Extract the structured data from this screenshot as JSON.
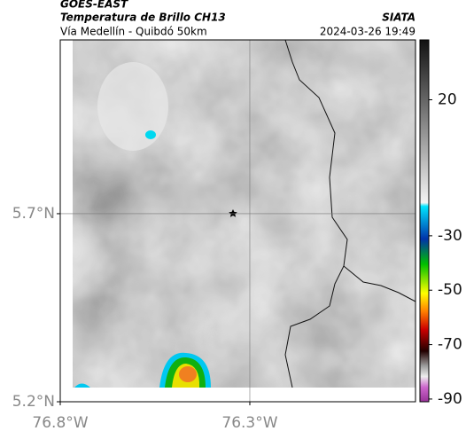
{
  "header": {
    "title": "GOES-EAST",
    "subtitle": "Temperatura de Brillo CH13",
    "route": "Vía Medellín - Quibdó 50km",
    "source": "SIATA",
    "datetime": "2024-03-26 19:49"
  },
  "map": {
    "xlim": [
      -76.8,
      -75.863
    ],
    "ylim": [
      5.2,
      6.162
    ],
    "xticks": [
      {
        "value": -76.8,
        "label": "76.8°W"
      },
      {
        "value": -76.3,
        "label": "76.3°W"
      }
    ],
    "yticks": [
      {
        "value": 5.2,
        "label": "5.2°N"
      },
      {
        "value": 5.7,
        "label": "5.7°N"
      }
    ]
  },
  "colorbar": {
    "lim": [
      -91,
      42
    ],
    "ticks": [
      20,
      -30,
      -50,
      -70,
      -90
    ]
  }
}
